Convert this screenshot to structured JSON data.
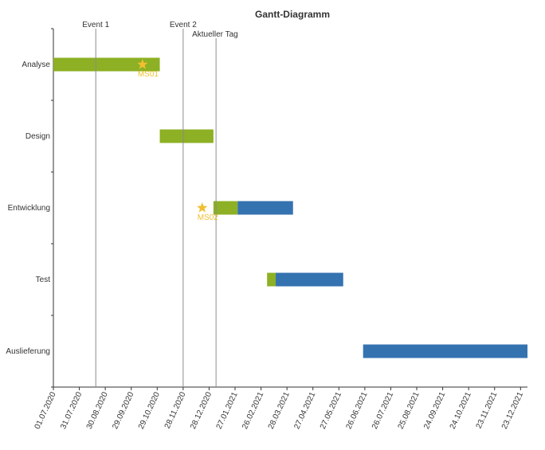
{
  "chart_data": {
    "type": "gantt",
    "title": "Gantt-Diagramm",
    "x_range": [
      "2020-07-01",
      "2021-12-31"
    ],
    "categories": [
      "Analyse",
      "Design",
      "Entwicklung",
      "Test",
      "Auslieferung"
    ],
    "x_tick_labels": [
      "01.07.2020",
      "31.07.2020",
      "30.08.2020",
      "29.09.2020",
      "29.10.2020",
      "28.11.2020",
      "28.12.2020",
      "27.01.2021",
      "26.02.2021",
      "28.03.2021",
      "27.04.2021",
      "27.05.2021",
      "26.06.2021",
      "26.07.2021",
      "25.08.2021",
      "24.09.2021",
      "24.10.2021",
      "23.11.2021",
      "23.12.2021"
    ],
    "series_colors": {
      "completed": "#8db024",
      "remaining": "#3572b0",
      "milestone": "#f0c030"
    },
    "tasks": [
      {
        "category": "Analyse",
        "start": "2020-07-01",
        "progress_end": "2020-11-01",
        "end": "2020-11-01"
      },
      {
        "category": "Design",
        "start": "2020-11-01",
        "progress_end": "2021-01-02",
        "end": "2021-01-02"
      },
      {
        "category": "Entwicklung",
        "start": "2021-01-02",
        "progress_end": "2021-01-30",
        "end": "2021-04-04"
      },
      {
        "category": "Test",
        "start": "2021-03-05",
        "progress_end": "2021-03-15",
        "end": "2021-06-01"
      },
      {
        "category": "Auslieferung",
        "start": "2021-06-24",
        "progress_end": "2021-06-24",
        "end": "2021-12-31"
      }
    ],
    "milestones": [
      {
        "label": "MS01",
        "category": "Analyse",
        "date": "2020-10-12"
      },
      {
        "label": "MS02",
        "category": "Entwicklung",
        "date": "2020-12-20"
      }
    ],
    "events": [
      {
        "label": "Event 1",
        "date": "2020-08-19"
      },
      {
        "label": "Event 2",
        "date": "2020-11-28"
      }
    ],
    "today": {
      "label": "Aktueller Tag",
      "date": "2021-01-05"
    }
  }
}
